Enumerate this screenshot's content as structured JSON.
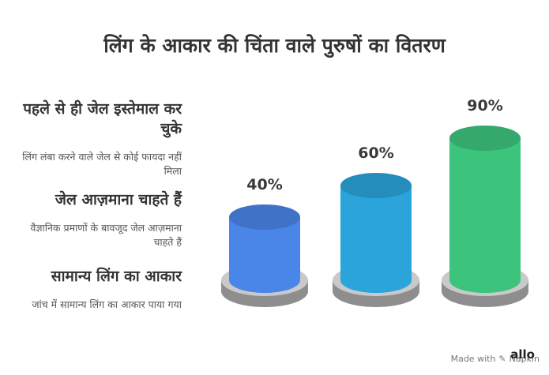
{
  "title": "लिंग के आकार की चिंता वाले पुरुषों का वितरण",
  "items": [
    {
      "title": "पहले से ही जेल इस्तेमाल कर चुके",
      "desc": "लिंग लंबा करने वाले जेल से कोई फायदा नहीं मिला"
    },
    {
      "title": "जेल आज़माना चाहते हैं",
      "desc": "वैज्ञानिक प्रमाणों के बावजूद जेल आज़माना चाहते हैं"
    },
    {
      "title": "सामान्य लिंग का आकार",
      "desc": "जांच में सामान्य लिंग का आकार पाया गया"
    }
  ],
  "chart_data": {
    "type": "bar",
    "title": "लिंग के आकार की चिंता वाले पुरुषों का वितरण",
    "values": [
      40,
      60,
      90
    ],
    "labels": [
      "40%",
      "60%",
      "90%"
    ],
    "colors": [
      "#4a86e8",
      "#2aa4db",
      "#3cc47c"
    ],
    "ylim": [
      0,
      100
    ]
  },
  "footer": {
    "made_with": "Made with",
    "brand": "Napkin",
    "logo": "allo"
  }
}
